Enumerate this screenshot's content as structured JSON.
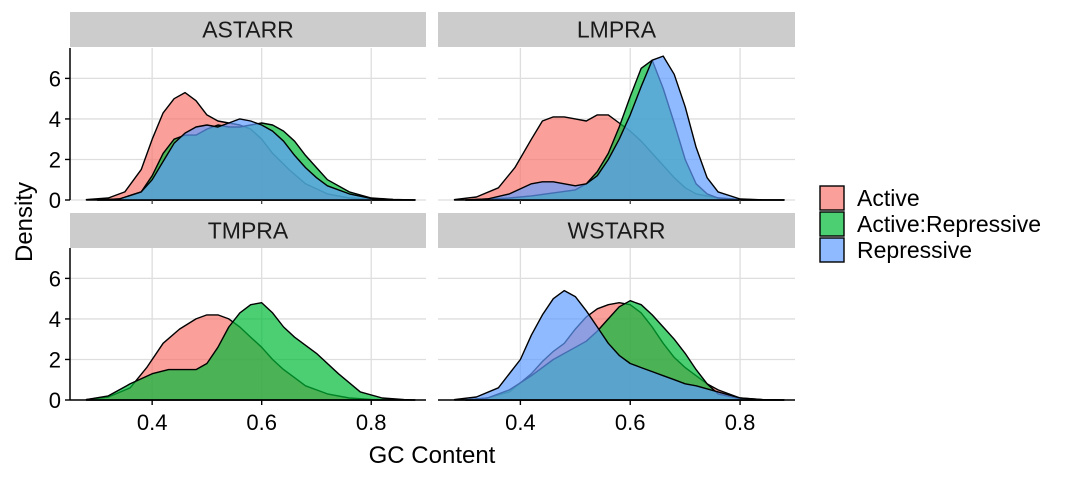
{
  "chart_data": {
    "type": "area",
    "title": "",
    "xlabel": "GC Content",
    "ylabel": "Density",
    "xlim": [
      0.25,
      0.9
    ],
    "ylim": [
      0,
      7.5
    ],
    "x_ticks": [
      0.4,
      0.6,
      0.8
    ],
    "x_tick_labels": [
      "0.4",
      "0.6",
      "0.8"
    ],
    "y_ticks": [
      0,
      2,
      4,
      6
    ],
    "y_tick_labels": [
      "0",
      "2",
      "4",
      "6"
    ],
    "grid": true,
    "legend": {
      "position": "right",
      "entries": [
        {
          "label": "Active",
          "color": "#F8766D"
        },
        {
          "label": "Active:Repressive",
          "color": "#00BA38"
        },
        {
          "label": "Repressive",
          "color": "#619CFF"
        }
      ]
    },
    "panels": [
      {
        "title": "ASTARR",
        "series": [
          {
            "name": "Active",
            "x": [
              0.28,
              0.32,
              0.35,
              0.38,
              0.4,
              0.42,
              0.44,
              0.46,
              0.48,
              0.5,
              0.52,
              0.54,
              0.56,
              0.58,
              0.6,
              0.62,
              0.65,
              0.68,
              0.72,
              0.76,
              0.8,
              0.84,
              0.88
            ],
            "y": [
              0.02,
              0.1,
              0.4,
              1.5,
              3.0,
              4.3,
              5.0,
              5.3,
              4.9,
              4.2,
              3.9,
              3.8,
              3.7,
              3.5,
              3.0,
              2.3,
              1.5,
              0.8,
              0.3,
              0.1,
              0.04,
              0.01,
              0.0
            ]
          },
          {
            "name": "Active:Repressive",
            "x": [
              0.3,
              0.34,
              0.38,
              0.4,
              0.42,
              0.44,
              0.46,
              0.48,
              0.5,
              0.52,
              0.54,
              0.56,
              0.58,
              0.6,
              0.62,
              0.64,
              0.66,
              0.68,
              0.7,
              0.72,
              0.76,
              0.8,
              0.84,
              0.88
            ],
            "y": [
              0.0,
              0.05,
              0.4,
              1.2,
              2.3,
              3.0,
              3.2,
              3.2,
              3.5,
              3.7,
              3.6,
              3.6,
              3.7,
              3.8,
              3.7,
              3.4,
              2.9,
              2.2,
              1.6,
              1.0,
              0.4,
              0.1,
              0.03,
              0.0
            ]
          },
          {
            "name": "Repressive",
            "x": [
              0.3,
              0.34,
              0.38,
              0.4,
              0.42,
              0.44,
              0.46,
              0.48,
              0.5,
              0.52,
              0.54,
              0.56,
              0.58,
              0.6,
              0.62,
              0.64,
              0.66,
              0.68,
              0.7,
              0.72,
              0.76,
              0.8,
              0.84,
              0.88
            ],
            "y": [
              0.0,
              0.05,
              0.4,
              1.0,
              1.9,
              2.8,
              3.3,
              3.6,
              3.7,
              3.6,
              3.8,
              4.0,
              3.9,
              3.7,
              3.4,
              2.9,
              2.2,
              1.6,
              1.1,
              0.7,
              0.3,
              0.08,
              0.02,
              0.0
            ]
          }
        ]
      },
      {
        "title": "LMPRA",
        "series": [
          {
            "name": "Active",
            "x": [
              0.28,
              0.32,
              0.36,
              0.39,
              0.42,
              0.44,
              0.46,
              0.48,
              0.5,
              0.52,
              0.54,
              0.56,
              0.58,
              0.6,
              0.62,
              0.64,
              0.66,
              0.68,
              0.7,
              0.72,
              0.76,
              0.8,
              0.84,
              0.88
            ],
            "y": [
              0.02,
              0.15,
              0.6,
              1.6,
              3.0,
              3.9,
              4.1,
              4.1,
              4.0,
              3.9,
              4.2,
              4.2,
              3.8,
              3.4,
              2.9,
              2.3,
              1.7,
              1.1,
              0.6,
              0.3,
              0.1,
              0.03,
              0.01,
              0.0
            ]
          },
          {
            "name": "Active:Repressive",
            "x": [
              0.3,
              0.34,
              0.38,
              0.42,
              0.46,
              0.5,
              0.52,
              0.54,
              0.56,
              0.58,
              0.6,
              0.62,
              0.64,
              0.66,
              0.68,
              0.7,
              0.72,
              0.74,
              0.76,
              0.8,
              0.84,
              0.88
            ],
            "y": [
              0.0,
              0.05,
              0.1,
              0.2,
              0.35,
              0.5,
              0.8,
              1.4,
              2.3,
              3.6,
              5.1,
              6.5,
              6.9,
              5.5,
              3.8,
              2.0,
              0.8,
              0.3,
              0.1,
              0.02,
              0.0,
              0.0
            ]
          },
          {
            "name": "Repressive",
            "x": [
              0.3,
              0.34,
              0.38,
              0.42,
              0.44,
              0.46,
              0.48,
              0.5,
              0.52,
              0.54,
              0.56,
              0.58,
              0.6,
              0.62,
              0.64,
              0.66,
              0.68,
              0.7,
              0.72,
              0.74,
              0.76,
              0.8,
              0.84,
              0.88
            ],
            "y": [
              0.0,
              0.05,
              0.3,
              0.8,
              0.9,
              0.9,
              0.8,
              0.7,
              0.8,
              1.2,
              2.0,
              3.0,
              4.2,
              5.6,
              6.9,
              7.1,
              6.2,
              4.6,
              2.6,
              1.1,
              0.4,
              0.05,
              0.01,
              0.0
            ]
          }
        ]
      },
      {
        "title": "TMPRA",
        "series": [
          {
            "name": "Active",
            "x": [
              0.28,
              0.32,
              0.36,
              0.39,
              0.42,
              0.45,
              0.48,
              0.5,
              0.52,
              0.54,
              0.56,
              0.58,
              0.6,
              0.62,
              0.64,
              0.66,
              0.68,
              0.72,
              0.76,
              0.8,
              0.84,
              0.88
            ],
            "y": [
              0.02,
              0.15,
              0.6,
              1.6,
              2.8,
              3.5,
              4.0,
              4.2,
              4.2,
              4.0,
              3.6,
              3.1,
              2.6,
              2.0,
              1.5,
              1.1,
              0.7,
              0.3,
              0.1,
              0.03,
              0.01,
              0.0
            ]
          },
          {
            "name": "Active:Repressive",
            "x": [
              0.28,
              0.32,
              0.36,
              0.4,
              0.43,
              0.45,
              0.48,
              0.5,
              0.52,
              0.54,
              0.56,
              0.58,
              0.6,
              0.62,
              0.64,
              0.66,
              0.7,
              0.74,
              0.78,
              0.82,
              0.86,
              0.88
            ],
            "y": [
              0.02,
              0.2,
              0.8,
              1.3,
              1.5,
              1.5,
              1.5,
              1.8,
              2.6,
              3.6,
              4.3,
              4.7,
              4.8,
              4.3,
              3.6,
              3.1,
              2.3,
              1.3,
              0.4,
              0.1,
              0.02,
              0.0
            ]
          }
        ]
      },
      {
        "title": "WSTARR",
        "series": [
          {
            "name": "Active",
            "x": [
              0.3,
              0.34,
              0.38,
              0.42,
              0.44,
              0.46,
              0.48,
              0.5,
              0.52,
              0.54,
              0.56,
              0.58,
              0.6,
              0.62,
              0.64,
              0.66,
              0.68,
              0.7,
              0.72,
              0.74,
              0.76,
              0.8,
              0.84,
              0.88
            ],
            "y": [
              0.0,
              0.1,
              0.4,
              1.3,
              1.9,
              2.4,
              2.8,
              3.5,
              4.1,
              4.5,
              4.7,
              4.8,
              4.7,
              4.3,
              3.6,
              2.8,
              2.1,
              1.6,
              1.2,
              0.8,
              0.5,
              0.1,
              0.02,
              0.0
            ]
          },
          {
            "name": "Active:Repressive",
            "x": [
              0.3,
              0.34,
              0.38,
              0.42,
              0.46,
              0.5,
              0.52,
              0.54,
              0.56,
              0.58,
              0.6,
              0.62,
              0.64,
              0.66,
              0.68,
              0.7,
              0.72,
              0.74,
              0.76,
              0.8,
              0.84,
              0.88
            ],
            "y": [
              0.0,
              0.1,
              0.5,
              1.2,
              2.0,
              2.6,
              2.9,
              3.4,
              4.0,
              4.6,
              4.9,
              4.7,
              4.2,
              3.6,
              3.0,
              2.3,
              1.5,
              0.8,
              0.3,
              0.06,
              0.01,
              0.0
            ]
          },
          {
            "name": "Repressive",
            "x": [
              0.28,
              0.32,
              0.36,
              0.4,
              0.42,
              0.44,
              0.46,
              0.48,
              0.5,
              0.52,
              0.54,
              0.56,
              0.58,
              0.6,
              0.62,
              0.64,
              0.66,
              0.68,
              0.7,
              0.72,
              0.76,
              0.8,
              0.84,
              0.88
            ],
            "y": [
              0.02,
              0.15,
              0.6,
              2.0,
              3.2,
              4.2,
              5.0,
              5.4,
              5.1,
              4.4,
              3.6,
              2.8,
              2.2,
              1.8,
              1.6,
              1.4,
              1.2,
              1.0,
              0.8,
              0.7,
              0.4,
              0.1,
              0.02,
              0.0
            ]
          }
        ]
      }
    ]
  }
}
